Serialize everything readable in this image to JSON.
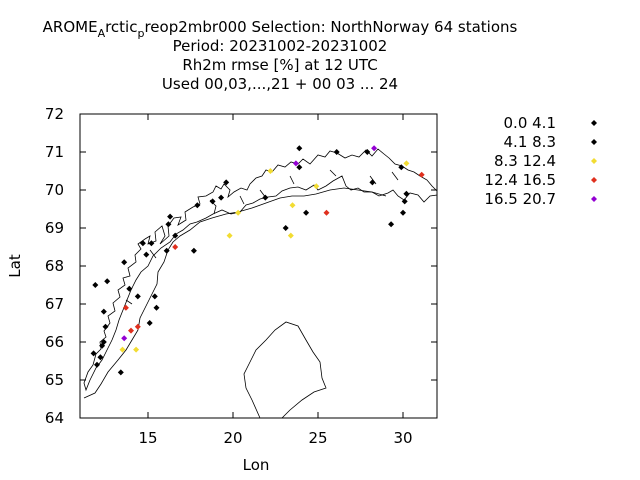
{
  "chart_data": {
    "type": "scatter",
    "title_lines": [
      {
        "parts": [
          {
            "text": "AROME"
          },
          {
            "text": "A",
            "sub": true
          },
          {
            "text": "rctic"
          },
          {
            "text": "p",
            "sub": true
          },
          {
            "text": "reop2mbr000   Selection: NorthNorway     64 stations"
          }
        ]
      },
      {
        "parts": [
          {
            "text": "Period: 20231002-20231002"
          }
        ]
      },
      {
        "parts": [
          {
            "text": "Rh2m rmse [%] at  12 UTC"
          }
        ]
      },
      {
        "parts": [
          {
            "text": "Used  00,03,...,21  + 00 03 ... 24"
          }
        ]
      }
    ],
    "xlabel": "Lon",
    "ylabel": "Lat",
    "xlim": [
      11,
      32
    ],
    "ylim": [
      64,
      72
    ],
    "xticks": [
      15,
      20,
      25,
      30
    ],
    "yticks": [
      64,
      65,
      66,
      67,
      68,
      69,
      70,
      71,
      72
    ],
    "grid": false,
    "legend_position": "right",
    "series": [
      {
        "name": "0.0 4.1",
        "color": "#000000",
        "points": [
          [
            11.8,
            65.7
          ],
          [
            12.0,
            65.4
          ],
          [
            12.2,
            65.6
          ],
          [
            12.3,
            65.9
          ],
          [
            12.4,
            66.0
          ],
          [
            12.5,
            66.4
          ],
          [
            12.4,
            66.8
          ],
          [
            11.9,
            67.5
          ],
          [
            12.6,
            67.6
          ],
          [
            13.4,
            65.2
          ],
          [
            13.6,
            68.1
          ],
          [
            13.9,
            67.4
          ],
          [
            14.4,
            67.2
          ],
          [
            14.7,
            68.6
          ],
          [
            14.9,
            68.3
          ],
          [
            15.2,
            68.6
          ],
          [
            15.1,
            66.5
          ],
          [
            15.4,
            67.2
          ],
          [
            15.5,
            66.9
          ],
          [
            16.1,
            68.4
          ],
          [
            16.2,
            69.1
          ],
          [
            16.3,
            69.3
          ],
          [
            16.6,
            68.8
          ],
          [
            17.7,
            68.4
          ],
          [
            17.9,
            69.6
          ],
          [
            18.8,
            69.7
          ],
          [
            19.3,
            69.8
          ],
          [
            19.6,
            70.2
          ],
          [
            21.9,
            69.8
          ],
          [
            23.1,
            69.0
          ],
          [
            24.3,
            69.4
          ],
          [
            23.9,
            70.6
          ],
          [
            23.9,
            71.1
          ],
          [
            26.1,
            71.0
          ],
          [
            27.9,
            71.0
          ],
          [
            28.2,
            70.2
          ],
          [
            29.3,
            69.1
          ],
          [
            29.9,
            70.6
          ],
          [
            30.1,
            69.7
          ],
          [
            30.0,
            69.4
          ],
          [
            30.2,
            69.9
          ]
        ]
      },
      {
        "name": "4.1 8.3",
        "color": "#000000",
        "points": []
      },
      {
        "name": "8.3 12.4",
        "color": "#f2dc32",
        "points": [
          [
            13.5,
            65.8
          ],
          [
            14.3,
            65.8
          ],
          [
            19.8,
            68.8
          ],
          [
            20.3,
            69.4
          ],
          [
            22.2,
            70.5
          ],
          [
            23.4,
            68.8
          ],
          [
            23.5,
            69.6
          ],
          [
            24.9,
            70.1
          ],
          [
            30.2,
            70.7
          ]
        ]
      },
      {
        "name": "12.4 16.5",
        "color": "#e0301e",
        "points": [
          [
            13.7,
            66.9
          ],
          [
            14.0,
            66.3
          ],
          [
            14.4,
            66.4
          ],
          [
            16.6,
            68.5
          ],
          [
            25.5,
            69.4
          ],
          [
            31.1,
            70.4
          ]
        ]
      },
      {
        "name": "16.5 20.7",
        "color": "#9400d3",
        "points": [
          [
            13.6,
            66.1
          ],
          [
            23.7,
            70.7
          ],
          [
            28.3,
            71.1
          ]
        ]
      }
    ]
  }
}
